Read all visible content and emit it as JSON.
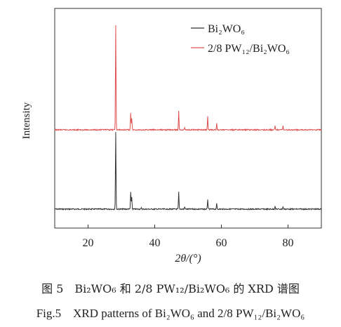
{
  "chart_data": {
    "type": "line",
    "xlabel": "2θ/(°)",
    "ylabel": "Intensity",
    "xlim": [
      10,
      90
    ],
    "xticks": [
      "20",
      "40",
      "60",
      "80"
    ],
    "xtick_values": [
      20,
      40,
      60,
      80
    ],
    "grid": false,
    "legend_placement": "top-right",
    "series": [
      {
        "name": "Bi₂WO₆",
        "color": "#333333",
        "baseline": 0,
        "peaks": [
          [
            28.3,
            100
          ],
          [
            32.8,
            22
          ],
          [
            33.1,
            16
          ],
          [
            47.2,
            22
          ],
          [
            55.9,
            13
          ],
          [
            58.6,
            7
          ],
          [
            76.1,
            4
          ],
          [
            78.5,
            3
          ],
          [
            49.0,
            3
          ],
          [
            36.0,
            1.5
          ]
        ]
      },
      {
        "name": "2/8 PW₁₂/Bi₂WO₆",
        "color": "#e05050",
        "baseline": 1,
        "peaks": [
          [
            28.3,
            135
          ],
          [
            32.8,
            22
          ],
          [
            33.1,
            15
          ],
          [
            47.2,
            24
          ],
          [
            55.9,
            18
          ],
          [
            58.6,
            9
          ],
          [
            76.1,
            5
          ],
          [
            78.5,
            5
          ],
          [
            49.0,
            3
          ]
        ]
      }
    ]
  },
  "caption": {
    "cn": "图 5　Bi₂WO₆ 和 2/8 PW₁₂/Bi₂WO₆ 的 XRD 谱图",
    "en": "Fig.5　XRD patterns  of Bi₂WO₆ and 2/8 PW₁₂/Bi₂WO₆"
  }
}
